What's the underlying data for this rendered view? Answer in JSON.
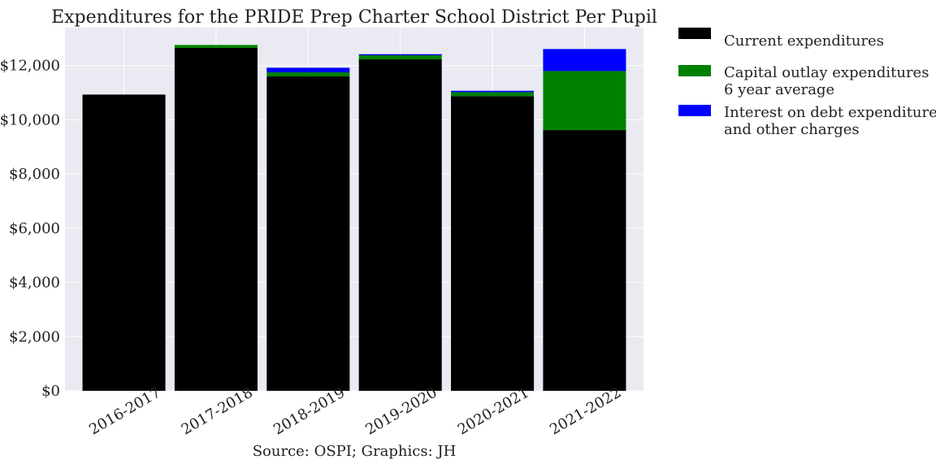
{
  "chart_data": {
    "type": "bar",
    "stacked": true,
    "title": "Expenditures for the PRIDE Prep Charter School District Per Pupil",
    "xlabel": "",
    "ylabel": "",
    "source": "Source: OSPI; Graphics: JH",
    "categories": [
      "2016-2017",
      "2017-2018",
      "2018-2019",
      "2019-2020",
      "2020-2021",
      "2021-2022"
    ],
    "series": [
      {
        "name": "Current expenditures",
        "color": "#000000",
        "values": [
          10930,
          12650,
          11600,
          12230,
          10870,
          9620
        ]
      },
      {
        "name": "Capital outlay expenditures\n6 year average",
        "color": "#008000",
        "values": [
          0,
          110,
          150,
          150,
          150,
          2180
        ]
      },
      {
        "name": "Interest on debt expenditures\nand other charges",
        "color": "#0000ff",
        "values": [
          0,
          0,
          170,
          40,
          50,
          810
        ]
      }
    ],
    "ylim": [
      0,
      13400
    ],
    "yticks": [
      0,
      2000,
      4000,
      6000,
      8000,
      10000,
      12000
    ],
    "ytick_labels": [
      "$0",
      "$2,000",
      "$4,000",
      "$6,000",
      "$8,000",
      "$10,000",
      "$12,000"
    ],
    "grid": true,
    "legend_placement": "outside-right",
    "background_color": "#eaeaf2",
    "grid_color": "#ffffff"
  }
}
